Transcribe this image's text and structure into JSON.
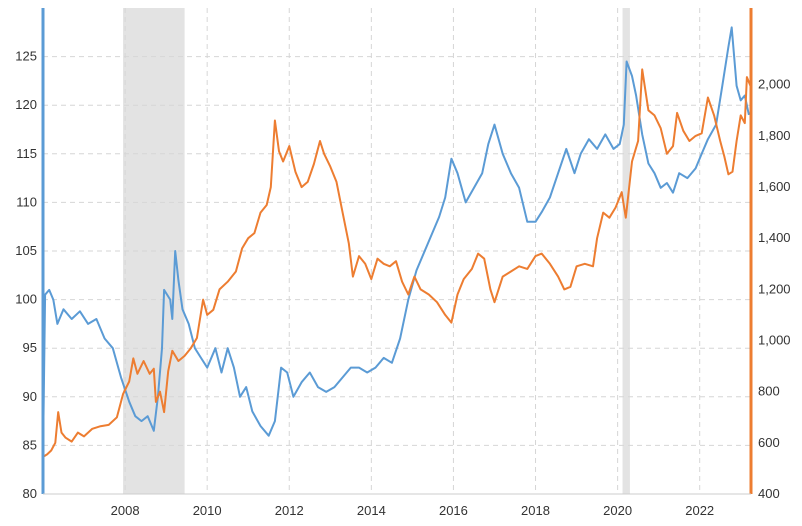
{
  "chart_data": {
    "type": "line",
    "title": "",
    "xlabel": "",
    "colors": {
      "left_series": "#5b9bd5",
      "right_series": "#ed7d31",
      "recession": "#e3e3e3",
      "grid": "#d6d6d6"
    },
    "x_range": [
      2006.0,
      2023.25
    ],
    "x_ticks": [
      {
        "value": 2008,
        "label": "2008"
      },
      {
        "value": 2010,
        "label": "2010"
      },
      {
        "value": 2012,
        "label": "2012"
      },
      {
        "value": 2014,
        "label": "2014"
      },
      {
        "value": 2016,
        "label": "2016"
      },
      {
        "value": 2018,
        "label": "2018"
      },
      {
        "value": 2020,
        "label": "2020"
      },
      {
        "value": 2022,
        "label": "2022"
      }
    ],
    "y_left": {
      "range": [
        80,
        130
      ],
      "ticks": [
        {
          "value": 80,
          "label": "80"
        },
        {
          "value": 85,
          "label": "85"
        },
        {
          "value": 90,
          "label": "90"
        },
        {
          "value": 95,
          "label": "95"
        },
        {
          "value": 100,
          "label": "100"
        },
        {
          "value": 105,
          "label": "105"
        },
        {
          "value": 110,
          "label": "110"
        },
        {
          "value": 115,
          "label": "115"
        },
        {
          "value": 120,
          "label": "120"
        },
        {
          "value": 125,
          "label": "125"
        }
      ]
    },
    "y_right": {
      "range": [
        400,
        2300
      ],
      "ticks": [
        {
          "value": 400,
          "label": "400"
        },
        {
          "value": 600,
          "label": "600"
        },
        {
          "value": 800,
          "label": "800"
        },
        {
          "value": 1000,
          "label": "1,000"
        },
        {
          "value": 1200,
          "label": "1,200"
        },
        {
          "value": 1400,
          "label": "1,400"
        },
        {
          "value": 1600,
          "label": "1,600"
        },
        {
          "value": 1800,
          "label": "1,800"
        },
        {
          "value": 2000,
          "label": "2,000"
        }
      ]
    },
    "recessions": [
      {
        "start": 2007.95,
        "end": 2009.45
      },
      {
        "start": 2020.12,
        "end": 2020.3
      }
    ],
    "series": [
      {
        "axis": "left",
        "color": "#5b9bd5",
        "points": [
          [
            2006.0,
            84
          ],
          [
            2006.05,
            100.5
          ],
          [
            2006.15,
            101
          ],
          [
            2006.25,
            100
          ],
          [
            2006.35,
            97.5
          ],
          [
            2006.5,
            99
          ],
          [
            2006.7,
            98
          ],
          [
            2006.9,
            98.8
          ],
          [
            2007.1,
            97.5
          ],
          [
            2007.3,
            98
          ],
          [
            2007.5,
            96
          ],
          [
            2007.7,
            95
          ],
          [
            2007.9,
            92
          ],
          [
            2008.1,
            89.5
          ],
          [
            2008.25,
            88
          ],
          [
            2008.4,
            87.5
          ],
          [
            2008.55,
            88
          ],
          [
            2008.7,
            86.5
          ],
          [
            2008.8,
            90
          ],
          [
            2008.9,
            95
          ],
          [
            2008.95,
            101
          ],
          [
            2009.1,
            100
          ],
          [
            2009.15,
            98
          ],
          [
            2009.22,
            105
          ],
          [
            2009.3,
            102
          ],
          [
            2009.4,
            99
          ],
          [
            2009.55,
            97.5
          ],
          [
            2009.7,
            95
          ],
          [
            2009.85,
            94
          ],
          [
            2010.0,
            93
          ],
          [
            2010.2,
            95
          ],
          [
            2010.35,
            92.5
          ],
          [
            2010.5,
            95
          ],
          [
            2010.65,
            93
          ],
          [
            2010.8,
            90
          ],
          [
            2010.95,
            91
          ],
          [
            2011.1,
            88.5
          ],
          [
            2011.3,
            87
          ],
          [
            2011.5,
            86
          ],
          [
            2011.65,
            87.5
          ],
          [
            2011.8,
            93
          ],
          [
            2011.95,
            92.5
          ],
          [
            2012.1,
            90
          ],
          [
            2012.3,
            91.5
          ],
          [
            2012.5,
            92.5
          ],
          [
            2012.7,
            91
          ],
          [
            2012.9,
            90.5
          ],
          [
            2013.1,
            91
          ],
          [
            2013.3,
            92
          ],
          [
            2013.5,
            93
          ],
          [
            2013.7,
            93
          ],
          [
            2013.9,
            92.5
          ],
          [
            2014.1,
            93
          ],
          [
            2014.3,
            94
          ],
          [
            2014.5,
            93.5
          ],
          [
            2014.7,
            96
          ],
          [
            2014.9,
            100
          ],
          [
            2015.1,
            103
          ],
          [
            2015.3,
            105
          ],
          [
            2015.5,
            107
          ],
          [
            2015.65,
            108.5
          ],
          [
            2015.8,
            110.5
          ],
          [
            2015.95,
            114.5
          ],
          [
            2016.1,
            113
          ],
          [
            2016.3,
            110
          ],
          [
            2016.5,
            111.5
          ],
          [
            2016.7,
            113
          ],
          [
            2016.85,
            116
          ],
          [
            2017.0,
            118
          ],
          [
            2017.2,
            115
          ],
          [
            2017.4,
            113
          ],
          [
            2017.6,
            111.5
          ],
          [
            2017.8,
            108
          ],
          [
            2018.0,
            108
          ],
          [
            2018.15,
            109
          ],
          [
            2018.35,
            110.5
          ],
          [
            2018.55,
            113
          ],
          [
            2018.75,
            115.5
          ],
          [
            2018.95,
            113
          ],
          [
            2019.1,
            115
          ],
          [
            2019.3,
            116.5
          ],
          [
            2019.5,
            115.5
          ],
          [
            2019.7,
            117
          ],
          [
            2019.9,
            115.5
          ],
          [
            2020.05,
            116
          ],
          [
            2020.15,
            118
          ],
          [
            2020.22,
            124.5
          ],
          [
            2020.35,
            123
          ],
          [
            2020.45,
            121
          ],
          [
            2020.6,
            117
          ],
          [
            2020.75,
            114
          ],
          [
            2020.9,
            113
          ],
          [
            2021.05,
            111.5
          ],
          [
            2021.2,
            112
          ],
          [
            2021.35,
            111
          ],
          [
            2021.5,
            113
          ],
          [
            2021.7,
            112.5
          ],
          [
            2021.9,
            113.5
          ],
          [
            2022.05,
            115
          ],
          [
            2022.2,
            116.5
          ],
          [
            2022.4,
            118
          ],
          [
            2022.55,
            122
          ],
          [
            2022.7,
            126
          ],
          [
            2022.78,
            128
          ],
          [
            2022.9,
            122
          ],
          [
            2023.0,
            120.5
          ],
          [
            2023.1,
            121
          ],
          [
            2023.2,
            119
          ]
        ]
      },
      {
        "axis": "right",
        "color": "#ed7d31",
        "points": [
          [
            2006.0,
            545
          ],
          [
            2006.1,
            555
          ],
          [
            2006.2,
            570
          ],
          [
            2006.3,
            600
          ],
          [
            2006.37,
            720
          ],
          [
            2006.45,
            640
          ],
          [
            2006.55,
            620
          ],
          [
            2006.7,
            605
          ],
          [
            2006.85,
            640
          ],
          [
            2007.0,
            625
          ],
          [
            2007.2,
            655
          ],
          [
            2007.4,
            665
          ],
          [
            2007.6,
            670
          ],
          [
            2007.8,
            700
          ],
          [
            2007.95,
            790
          ],
          [
            2008.1,
            840
          ],
          [
            2008.2,
            930
          ],
          [
            2008.3,
            870
          ],
          [
            2008.45,
            920
          ],
          [
            2008.6,
            870
          ],
          [
            2008.7,
            890
          ],
          [
            2008.75,
            760
          ],
          [
            2008.85,
            800
          ],
          [
            2008.95,
            720
          ],
          [
            2009.05,
            880
          ],
          [
            2009.15,
            960
          ],
          [
            2009.3,
            920
          ],
          [
            2009.45,
            940
          ],
          [
            2009.6,
            970
          ],
          [
            2009.75,
            1010
          ],
          [
            2009.9,
            1160
          ],
          [
            2010.0,
            1100
          ],
          [
            2010.15,
            1120
          ],
          [
            2010.3,
            1200
          ],
          [
            2010.5,
            1230
          ],
          [
            2010.7,
            1270
          ],
          [
            2010.85,
            1360
          ],
          [
            2011.0,
            1400
          ],
          [
            2011.15,
            1420
          ],
          [
            2011.3,
            1500
          ],
          [
            2011.45,
            1530
          ],
          [
            2011.55,
            1600
          ],
          [
            2011.65,
            1860
          ],
          [
            2011.75,
            1740
          ],
          [
            2011.85,
            1700
          ],
          [
            2012.0,
            1760
          ],
          [
            2012.15,
            1660
          ],
          [
            2012.3,
            1600
          ],
          [
            2012.45,
            1620
          ],
          [
            2012.6,
            1690
          ],
          [
            2012.75,
            1780
          ],
          [
            2012.85,
            1730
          ],
          [
            2013.0,
            1680
          ],
          [
            2013.15,
            1620
          ],
          [
            2013.3,
            1500
          ],
          [
            2013.45,
            1380
          ],
          [
            2013.55,
            1250
          ],
          [
            2013.7,
            1330
          ],
          [
            2013.85,
            1300
          ],
          [
            2014.0,
            1240
          ],
          [
            2014.15,
            1320
          ],
          [
            2014.3,
            1300
          ],
          [
            2014.45,
            1290
          ],
          [
            2014.6,
            1310
          ],
          [
            2014.75,
            1230
          ],
          [
            2014.9,
            1180
          ],
          [
            2015.05,
            1250
          ],
          [
            2015.2,
            1200
          ],
          [
            2015.4,
            1180
          ],
          [
            2015.6,
            1150
          ],
          [
            2015.8,
            1100
          ],
          [
            2015.95,
            1070
          ],
          [
            2016.1,
            1180
          ],
          [
            2016.25,
            1240
          ],
          [
            2016.45,
            1280
          ],
          [
            2016.6,
            1340
          ],
          [
            2016.75,
            1320
          ],
          [
            2016.9,
            1200
          ],
          [
            2017.0,
            1150
          ],
          [
            2017.2,
            1250
          ],
          [
            2017.4,
            1270
          ],
          [
            2017.6,
            1290
          ],
          [
            2017.8,
            1280
          ],
          [
            2018.0,
            1330
          ],
          [
            2018.15,
            1340
          ],
          [
            2018.35,
            1300
          ],
          [
            2018.55,
            1250
          ],
          [
            2018.7,
            1200
          ],
          [
            2018.85,
            1210
          ],
          [
            2019.0,
            1290
          ],
          [
            2019.2,
            1300
          ],
          [
            2019.4,
            1290
          ],
          [
            2019.5,
            1400
          ],
          [
            2019.65,
            1500
          ],
          [
            2019.8,
            1480
          ],
          [
            2019.95,
            1520
          ],
          [
            2020.1,
            1580
          ],
          [
            2020.2,
            1480
          ],
          [
            2020.35,
            1700
          ],
          [
            2020.5,
            1780
          ],
          [
            2020.6,
            2060
          ],
          [
            2020.75,
            1900
          ],
          [
            2020.9,
            1880
          ],
          [
            2021.05,
            1830
          ],
          [
            2021.2,
            1730
          ],
          [
            2021.35,
            1760
          ],
          [
            2021.45,
            1890
          ],
          [
            2021.6,
            1820
          ],
          [
            2021.75,
            1780
          ],
          [
            2021.9,
            1800
          ],
          [
            2022.05,
            1810
          ],
          [
            2022.2,
            1950
          ],
          [
            2022.35,
            1880
          ],
          [
            2022.5,
            1780
          ],
          [
            2022.6,
            1720
          ],
          [
            2022.7,
            1650
          ],
          [
            2022.8,
            1660
          ],
          [
            2022.9,
            1780
          ],
          [
            2023.0,
            1880
          ],
          [
            2023.1,
            1850
          ],
          [
            2023.15,
            2030
          ],
          [
            2023.25,
            1990
          ]
        ]
      }
    ]
  }
}
